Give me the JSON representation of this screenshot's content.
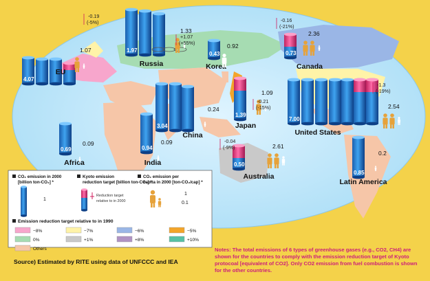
{
  "chart_data": {
    "type": "bar",
    "units": {
      "emission": "CO2 emission in 2000 [billion ton-CO2] *",
      "target": "Kyoto emission reduction target [billion ton-CO2] *",
      "per_capita": "CO2 emission per capita in 2000 [ton-CO2/cap] *"
    },
    "regions": [
      {
        "name": "EU",
        "emission": "4.07",
        "per_capita": "1.07",
        "target": "-0.19",
        "target_pct": "(-5%)",
        "target_color": "#ff5f9e"
      },
      {
        "name": "Russia",
        "emission": "1.97",
        "per_capita": "1.33",
        "target": "+1.07",
        "target_pct": "(+55%)",
        "target_color": "#7fd3a8"
      },
      {
        "name": "Korea",
        "emission": "0.43",
        "per_capita": "0.92"
      },
      {
        "name": "Canada",
        "emission": "0.73",
        "per_capita": "2.36",
        "target": "-0.16",
        "target_pct": "(-21%)",
        "target_color": "#ff5f9e"
      },
      {
        "name": "Japan",
        "emission": "1.39",
        "per_capita": "1.09",
        "target": "-0.21",
        "target_pct": "(-15%)",
        "target_color": "#ff5f9e"
      },
      {
        "name": "China",
        "emission": "3.04",
        "per_capita": "0.24"
      },
      {
        "name": "United States",
        "emission": "7.00",
        "per_capita": "2.54",
        "target": "-1.3",
        "target_pct": "(-19%)",
        "target_color": "#ff5f9e"
      },
      {
        "name": "Africa",
        "emission": "0.69",
        "per_capita": "0.09"
      },
      {
        "name": "India",
        "emission": "0.94",
        "per_capita": "0.09"
      },
      {
        "name": "Australia",
        "emission": "0.50",
        "per_capita": "2.61",
        "target": "-0.04",
        "target_pct": "(-9%)",
        "target_color": "#ff5f9e"
      },
      {
        "name": "Latin America",
        "emission": "0.85",
        "per_capita": "0.2"
      }
    ]
  },
  "legend": {
    "emission_title": "CO₂ emission in 2000 [billion ton-CO₂] *",
    "emission_value": "1",
    "target_title": "Kyoto emission reduction target [billion ton-CO₂] *",
    "target_note": "Reduction target relative to in 2000",
    "per_capita_title": "CO₂ emission per capita in 2000 [ton-CO₂/cap] *",
    "per_capita_big": "1",
    "per_capita_small": "0.1",
    "reduction_title": "Emission reduction target relative to in 1990",
    "swatches": [
      {
        "label": "−8%",
        "color": "#f7a6cc"
      },
      {
        "label": "−7%",
        "color": "#fff3a8"
      },
      {
        "label": "−6%",
        "color": "#9ab6e6"
      },
      {
        "label": "−5%",
        "color": "#f3a52a"
      },
      {
        "label": "0%",
        "color": "#a6dcb2"
      },
      {
        "label": "+1%",
        "color": "#c9c9c9"
      },
      {
        "label": "+8%",
        "color": "#b093c4"
      },
      {
        "label": "+10%",
        "color": "#57c1a5"
      },
      {
        "label": "Others",
        "color": "#f6c6a8"
      }
    ]
  },
  "source": "Source) Estimated by RITE using data of UNFCCC and IEA",
  "notes": "Notes: The total emissions of 6 types of greenhouse gases (e.g., CO2, CH4) are shown for the countries to comply with the emission reduction target of Kyoto protocoal [equivalent of CO2]. Only CO2 emission from fuel combustion is shown for the other countries."
}
